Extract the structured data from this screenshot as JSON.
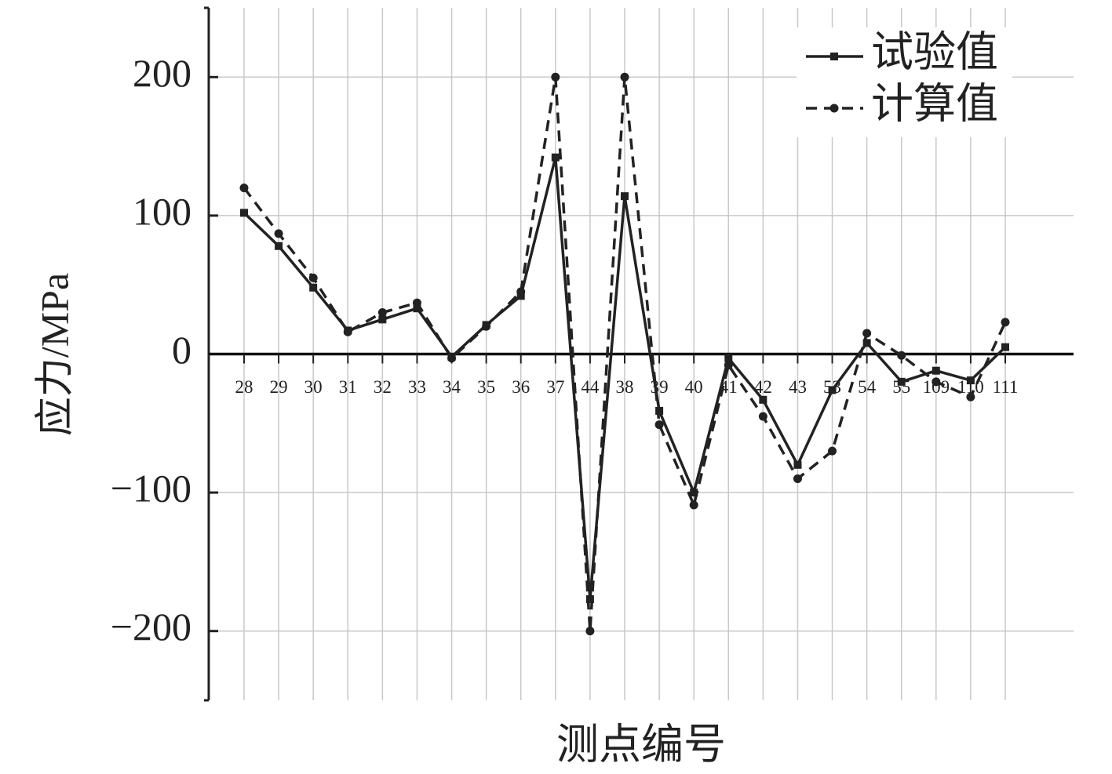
{
  "chart_data": {
    "type": "line",
    "x_label": "测点编号",
    "y_label": "应力/MPa",
    "categories": [
      "28",
      "29",
      "30",
      "31",
      "32",
      "33",
      "34",
      "35",
      "36",
      "37",
      "44",
      "38",
      "39",
      "40",
      "41",
      "42",
      "43",
      "53",
      "54",
      "55",
      "109",
      "110",
      "111"
    ],
    "series": [
      {
        "name": "试验值",
        "color": "#222222",
        "line_style": "solid",
        "marker": "square",
        "values": [
          102,
          78,
          48,
          17,
          25,
          33,
          -2,
          21,
          42,
          142,
          -177,
          114,
          -41,
          -100,
          -3,
          -33,
          -80,
          -26,
          8,
          -20,
          -12,
          -19,
          5
        ]
      },
      {
        "name": "计算值",
        "color": "#222222",
        "line_style": "dashed",
        "marker": "circle",
        "values": [
          120,
          87,
          55,
          16,
          30,
          37,
          -3,
          20,
          45,
          200,
          -200,
          200,
          -51,
          -109,
          -8,
          -45,
          -90,
          -70,
          15,
          -1,
          -20,
          -31,
          23
        ]
      }
    ],
    "ylim": [
      -250,
      250
    ],
    "yticks": [
      {
        "value": -200,
        "label": "−200"
      },
      {
        "value": -100,
        "label": "−100"
      },
      0,
      100,
      200
    ],
    "grid": true,
    "legend": "upper right"
  }
}
